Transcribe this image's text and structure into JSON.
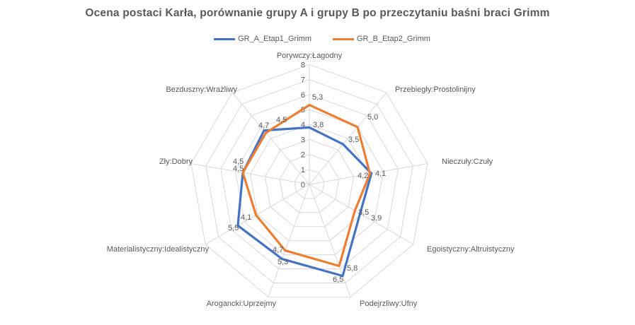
{
  "title": "Ocena postaci Karła, porównanie grupy A i grupy B po przeczytaniu baśni braci Grimm",
  "legend": [
    {
      "label": "GR_A_Etap1_Grimm",
      "color": "#4472C4"
    },
    {
      "label": "GR_B_Etap2_Grimm",
      "color": "#ED7D31"
    }
  ],
  "chart_data": {
    "type": "radar",
    "title": "Ocena postaci Karła, porównanie grupy A i grupy B po przeczytaniu baśni braci Grimm",
    "categories": [
      "Porywczy:Łagodny",
      "Przebiegły:Prostolinijny",
      "Nieczuły:Czuły",
      "Egoistyczny:Altruistyczny",
      "Podejrzliwy:Ufny",
      "Arogancki:Uprzejmy",
      "Materialistyczny:Idealistyczny",
      "Zły:Dobry",
      "Bezduszny:Wrażliwy"
    ],
    "series": [
      {
        "name": "GR_A_Etap1_Grimm",
        "color": "#4472C4",
        "values": [
          3.8,
          3.5,
          4.2,
          3.9,
          6.5,
          5.3,
          5.5,
          4.5,
          4.7
        ],
        "labels": [
          "3,8",
          "3,5",
          "4,2",
          "3,9",
          "6,5",
          "5,3",
          "5,5",
          "4,5",
          "4,7"
        ]
      },
      {
        "name": "GR_B_Etap2_Grimm",
        "color": "#ED7D31",
        "values": [
          5.3,
          5.0,
          4.1,
          3.5,
          5.8,
          4.7,
          4.1,
          4.5,
          4.5
        ],
        "labels": [
          "5,3",
          "5,0",
          "4,1",
          "3,5",
          "5,8",
          "4,7",
          "4,1",
          "4,5",
          "4,5"
        ]
      }
    ],
    "axis": {
      "min": 0,
      "max": 8,
      "step": 1,
      "tick_labels": [
        "0",
        "1",
        "2",
        "3",
        "4",
        "5",
        "6",
        "7",
        "8"
      ]
    },
    "grid": "on",
    "grid_color": "#D9D9D9",
    "text_color": "#595959",
    "legend_position": "top"
  }
}
